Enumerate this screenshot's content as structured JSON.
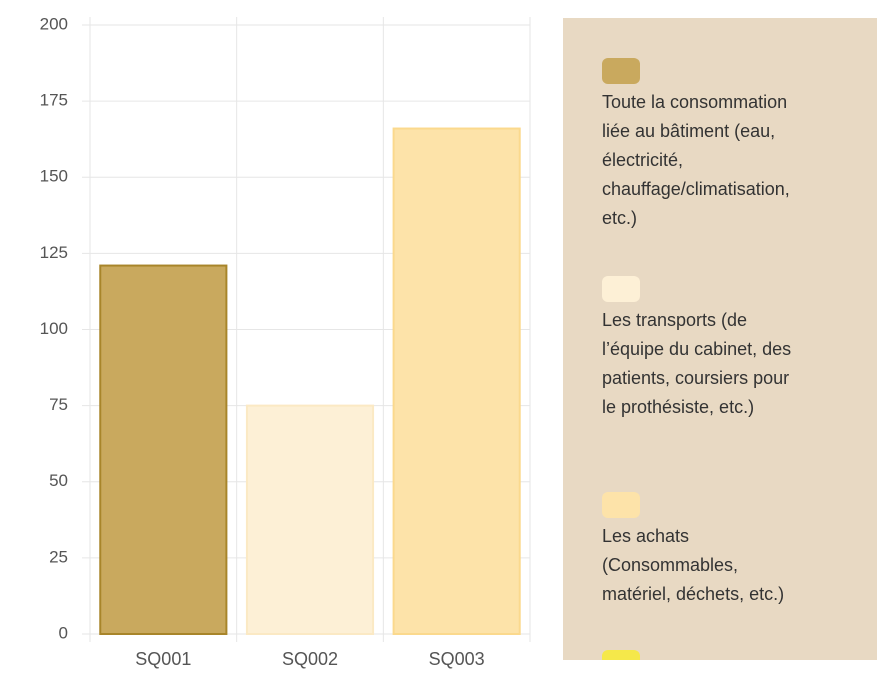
{
  "chart_data": {
    "type": "bar",
    "categories": [
      "SQ001",
      "SQ002",
      "SQ003"
    ],
    "values": [
      121,
      75,
      166
    ],
    "colors": [
      "#c9a95e",
      "#fdf0d6",
      "#fde3a9"
    ],
    "border_colors": [
      "#a8852a",
      "#fbe9c4",
      "#fbd98d"
    ],
    "ylim": [
      0,
      200
    ],
    "yticks": [
      0,
      25,
      50,
      75,
      100,
      125,
      150,
      175,
      200
    ],
    "grid": true,
    "legend": [
      "Toute la consommation liée au bâtiment (eau, électricité, chauffage/climatisation, etc.)",
      "Les transports (de l’équipe du cabinet, des patients, coursiers pour le prothésiste, etc.)",
      "Les achats (Consommables, matériel, déchets, etc.)"
    ],
    "legend_position": "right"
  }
}
